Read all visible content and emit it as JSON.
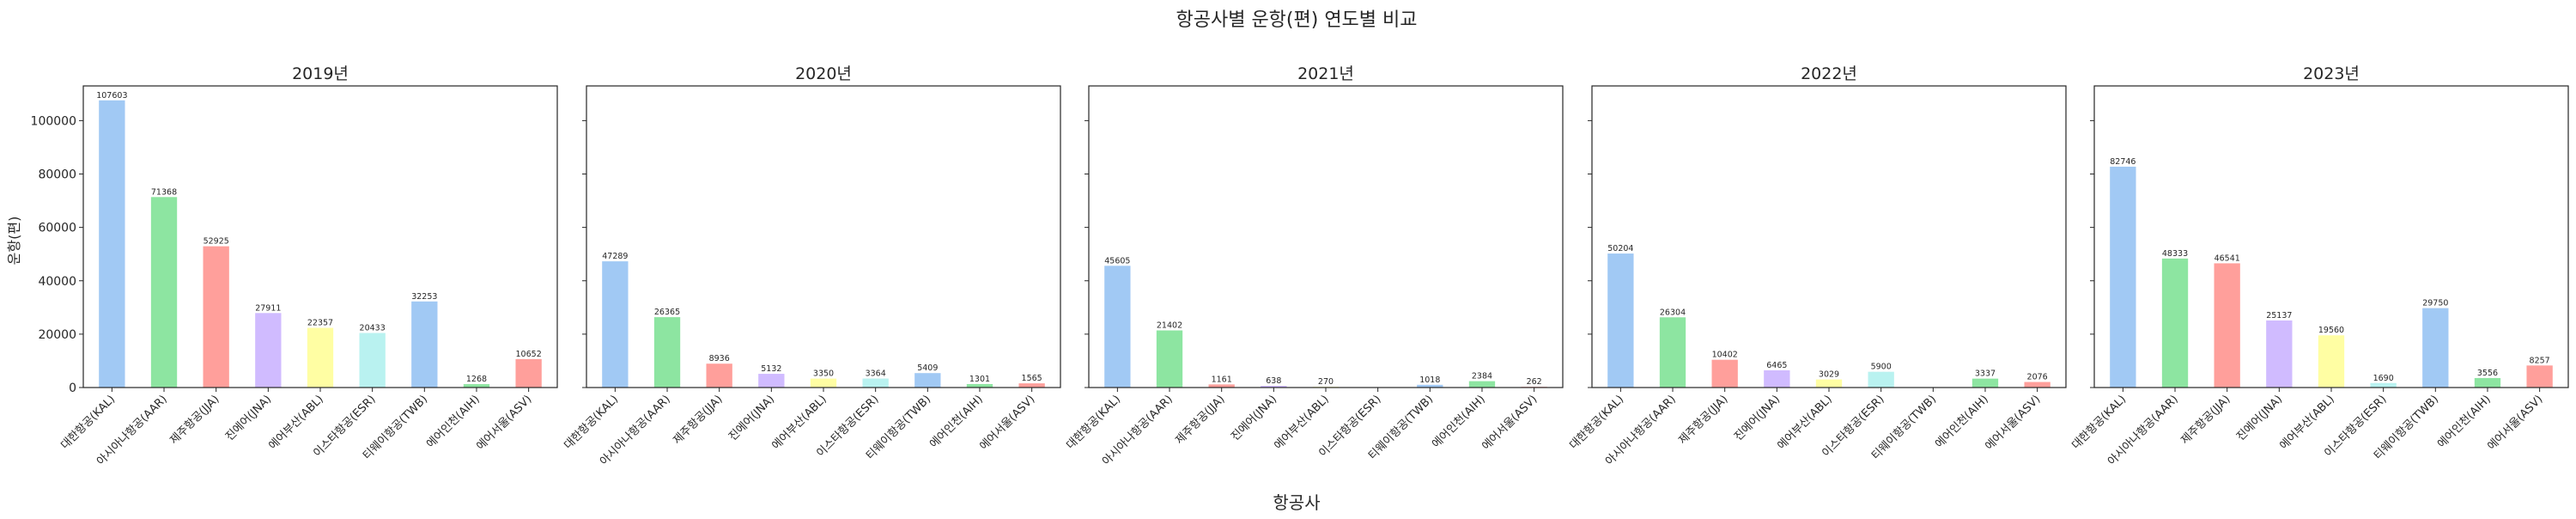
{
  "figure": {
    "suptitle": "항공사별 운항(편) 연도별 비교",
    "xlabel": "항공사",
    "ylabel": "운항(편)"
  },
  "colors": [
    "#a1c9f4",
    "#8de5a1",
    "#ff9f9b",
    "#d0bbff",
    "#fffea3",
    "#b9f2f0",
    "#a1c9f4",
    "#8de5a1",
    "#ff9f9b"
  ],
  "chart_data": {
    "type": "bar",
    "categories": [
      "대한항공(KAL)",
      "아시아나항공(AAR)",
      "제주항공(JJA)",
      "진에어(JNA)",
      "에어부산(ABL)",
      "이스타항공(ESR)",
      "티웨이항공(TWB)",
      "에어인천(AIH)",
      "에어서울(ASV)"
    ],
    "ylim": [
      0,
      113000
    ],
    "yticks": [
      0,
      20000,
      40000,
      60000,
      80000,
      100000
    ],
    "shared_y": true,
    "grid": false,
    "series": [
      {
        "name": "2019년",
        "values": [
          107603,
          71368,
          52925,
          27911,
          22357,
          20433,
          32253,
          1268,
          10652
        ]
      },
      {
        "name": "2020년",
        "values": [
          47289,
          26365,
          8936,
          5132,
          3350,
          3364,
          5409,
          1301,
          1565
        ]
      },
      {
        "name": "2021년",
        "values": [
          45605,
          21402,
          1161,
          638,
          270,
          null,
          1018,
          2384,
          262
        ]
      },
      {
        "name": "2022년",
        "values": [
          50204,
          26304,
          10402,
          6465,
          3029,
          5900,
          null,
          3337,
          2076
        ]
      },
      {
        "name": "2023년",
        "values": [
          82746,
          48333,
          46541,
          25137,
          19560,
          1690,
          29750,
          3556,
          8257
        ]
      }
    ]
  }
}
